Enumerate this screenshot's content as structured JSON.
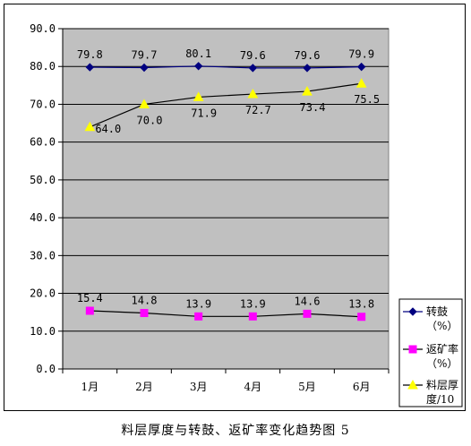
{
  "caption": "料层厚度与转鼓、返矿率变化趋势图 5",
  "colors": {
    "plot_bg": "#C0C0C0",
    "grid": "#000000",
    "series_blue": "#000080",
    "series_magenta": "#FF00FF",
    "series_yellow": "#FFFF00",
    "line_black": "#000000"
  },
  "chart_data": {
    "type": "line",
    "title": "",
    "xlabel": "",
    "ylabel": "",
    "categories": [
      "1月",
      "2月",
      "3月",
      "4月",
      "5月",
      "6月"
    ],
    "ylim": [
      0,
      90
    ],
    "yticks": [
      "0.0",
      "10.0",
      "20.0",
      "30.0",
      "40.0",
      "50.0",
      "60.0",
      "70.0",
      "80.0",
      "90.0"
    ],
    "grid": true,
    "legend_position": "right",
    "series": [
      {
        "name": "转鼓（%）",
        "legend_lines": [
          "转鼓",
          "（%）"
        ],
        "marker": "diamond",
        "color": "#000080",
        "values": [
          79.8,
          79.7,
          80.1,
          79.6,
          79.6,
          79.9
        ],
        "labels": [
          "79.8",
          "79.7",
          "80.1",
          "79.6",
          "79.6",
          "79.9"
        ]
      },
      {
        "name": "返矿率（%）",
        "legend_lines": [
          "返矿率",
          "（%）"
        ],
        "marker": "square",
        "color": "#FF00FF",
        "values": [
          15.4,
          14.8,
          13.9,
          13.9,
          14.6,
          13.8
        ],
        "labels": [
          "15.4",
          "14.8",
          "13.9",
          "13.9",
          "14.6",
          "13.8"
        ]
      },
      {
        "name": "料层厚度/10",
        "legend_lines": [
          "料层厚",
          "度/10"
        ],
        "marker": "triangle",
        "color": "#FFFF00",
        "values": [
          64.0,
          70.0,
          71.9,
          72.7,
          73.4,
          75.5
        ],
        "labels": [
          "64.0",
          "70.0",
          "71.9",
          "72.7",
          "73.4",
          "75.5"
        ]
      }
    ]
  }
}
